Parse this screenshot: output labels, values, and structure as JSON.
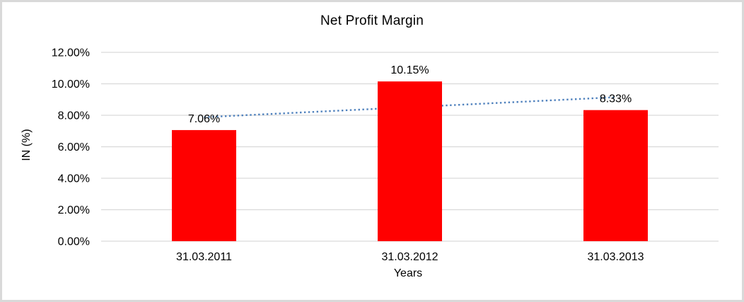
{
  "frame": {
    "background": "#ffffff",
    "border_color": "#d9d9d9"
  },
  "chart_data": {
    "type": "bar",
    "title": "Net Profit Margin",
    "xlabel": "Years",
    "ylabel": "IN (%)",
    "categories": [
      "31.03.2011",
      "31.03.2012",
      "31.03.2013"
    ],
    "series": [
      {
        "name": "Net Profit Margin",
        "values": [
          7.06,
          10.15,
          8.33
        ]
      }
    ],
    "data_labels": [
      "7.06%",
      "10.15%",
      "8.33%"
    ],
    "y_ticks": [
      {
        "value": 0,
        "label": "0.00%"
      },
      {
        "value": 2,
        "label": "2.00%"
      },
      {
        "value": 4,
        "label": "4.00%"
      },
      {
        "value": 6,
        "label": "6.00%"
      },
      {
        "value": 8,
        "label": "8.00%"
      },
      {
        "value": 10,
        "label": "10.00%"
      },
      {
        "value": 12,
        "label": "12.00%"
      }
    ],
    "ylim": [
      0,
      12
    ],
    "grid": true,
    "legend_position": "none",
    "bar_color": "#ff0000",
    "gridline_color": "#d9d9d9",
    "text_color": "#000000",
    "trendline": {
      "type": "linear",
      "style": "dotted",
      "color": "#4f81bd"
    }
  }
}
